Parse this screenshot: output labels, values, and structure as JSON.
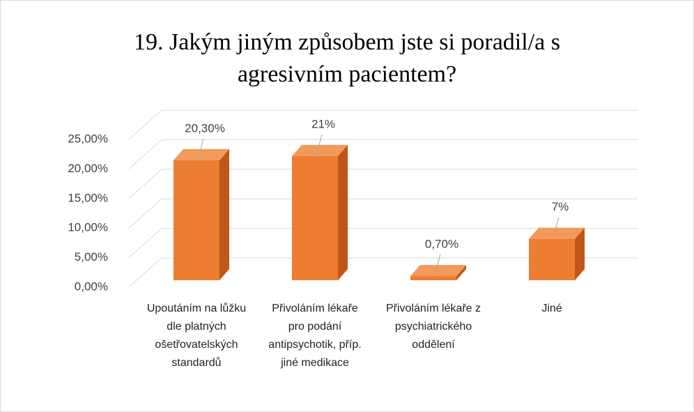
{
  "chart_data": {
    "type": "bar3d",
    "title": "19. Jakým jiným způsobem jste si poradil/a s agresivním pacientem?",
    "categories": [
      "Upoutáním na lůžku dle platných ošetřovatelských standardů",
      "Přivoláním lékaře pro podání antipsychotik, příp. jiné medikace",
      "Přivoláním lékaře z psychiatrického oddělení",
      "Jiné"
    ],
    "values": [
      20.3,
      21,
      0.7,
      7
    ],
    "value_labels": [
      "20,30%",
      "21%",
      "0,70%",
      "7%"
    ],
    "color": "#ed7d31",
    "ylim": [
      0,
      25
    ],
    "yticks": [
      {
        "value": 0,
        "label": "0,00%"
      },
      {
        "value": 5,
        "label": "5,00%"
      },
      {
        "value": 10,
        "label": "10,00%"
      },
      {
        "value": 15,
        "label": "15,00%"
      },
      {
        "value": 20,
        "label": "20,00%"
      },
      {
        "value": 25,
        "label": "25,00%"
      }
    ],
    "grid": true
  }
}
